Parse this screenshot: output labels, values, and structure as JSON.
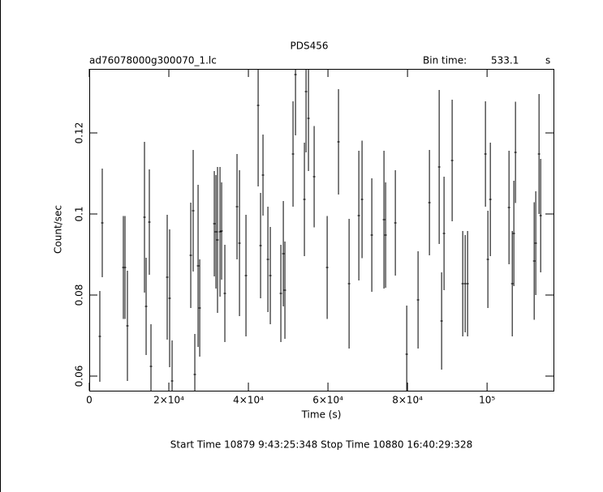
{
  "chart_data": {
    "type": "errorbar",
    "title": "PDS456",
    "subtitle": "ad76078000g300070_1.lc",
    "bin_time_label": "Bin time:",
    "bin_time": 533.1,
    "bin_time_unit": "s",
    "xlabel": "Time (s)",
    "ylabel": "Count/sec",
    "footer": "Start Time 10879  9:43:25:348    Stop Time 10880 16:40:29:328",
    "color": "#000000",
    "xlim": [
      0,
      116700
    ],
    "ylim": [
      0.0564,
      0.1358
    ],
    "xticks": [
      0,
      {
        "value": 20000,
        "label": "2×10⁴"
      },
      {
        "value": 40000,
        "label": "4×10⁴"
      },
      {
        "value": 60000,
        "label": "6×10⁴"
      },
      {
        "value": 80000,
        "label": "8×10⁴"
      },
      {
        "value": 100000,
        "label": "10⁵"
      }
    ],
    "yticks": [
      0.06,
      0.08,
      0.1,
      0.12
    ],
    "x": [
      2650,
      3265,
      8570,
      8980,
      9590,
      13880,
      14290,
      15100,
      15510,
      19590,
      20200,
      20820,
      25510,
      26120,
      26530,
      27350,
      27760,
      31430,
      31840,
      32240,
      32860,
      33270,
      34080,
      37140,
      37760,
      39390,
      42450,
      43060,
      43670,
      44900,
      45510,
      48160,
      48780,
      49180,
      51220,
      51840,
      54080,
      54490,
      55100,
      56530,
      59800,
      62650,
      65310,
      67760,
      68570,
      71020,
      74080,
      74490,
      76940,
      79800,
      82650,
      85510,
      87960,
      88570,
      89180,
      91220,
      93880,
      94490,
      95100,
      99590,
      100200,
      100820,
      105510,
      106330,
      106730,
      107140,
      111840,
      112240,
      113060,
      113470
    ],
    "values": [
      0.0698,
      0.0978,
      0.0868,
      0.0868,
      0.0724,
      0.0992,
      0.0772,
      0.098,
      0.0624,
      0.0844,
      0.0792,
      0.0588,
      0.0898,
      0.1008,
      0.0604,
      0.0872,
      0.0768,
      0.0976,
      0.0956,
      0.0936,
      0.0956,
      0.0958,
      0.0804,
      0.1018,
      0.0928,
      0.0848,
      0.1268,
      0.0922,
      0.1096,
      0.0888,
      0.0848,
      0.0804,
      0.0902,
      0.0812,
      0.1148,
      0.1344,
      0.1036,
      0.1302,
      0.1236,
      0.1092,
      0.0868,
      0.1178,
      0.0828,
      0.0996,
      0.1036,
      0.0948,
      0.0986,
      0.0948,
      0.0978,
      0.0654,
      0.0788,
      0.1028,
      0.1116,
      0.0736,
      0.0952,
      0.1132,
      0.0828,
      0.0828,
      0.0828,
      0.1148,
      0.0888,
      0.1036,
      0.1016,
      0.0828,
      0.0952,
      0.1152,
      0.0884,
      0.0928,
      0.1148,
      0.0996
    ],
    "errors": [
      0.0112,
      0.0134,
      0.0127,
      0.0127,
      0.0136,
      0.0186,
      0.012,
      0.013,
      0.0104,
      0.0154,
      0.017,
      0.01,
      0.013,
      0.015,
      0.01,
      0.02,
      0.012,
      0.013,
      0.014,
      0.018,
      0.016,
      0.012,
      0.012,
      0.013,
      0.018,
      0.015,
      0.02,
      0.013,
      0.01,
      0.013,
      0.012,
      0.012,
      0.013,
      0.012,
      0.013,
      0.015,
      0.014,
      0.015,
      0.013,
      0.0125,
      0.0127,
      0.013,
      0.016,
      0.016,
      0.0145,
      0.014,
      0.017,
      0.013,
      0.013,
      0.012,
      0.012,
      0.013,
      0.019,
      0.012,
      0.014,
      0.015,
      0.013,
      0.012,
      0.013,
      0.013,
      0.012,
      0.014,
      0.014,
      0.013,
      0.013,
      0.0125,
      0.0145,
      0.0128,
      0.0148,
      0.014
    ]
  }
}
